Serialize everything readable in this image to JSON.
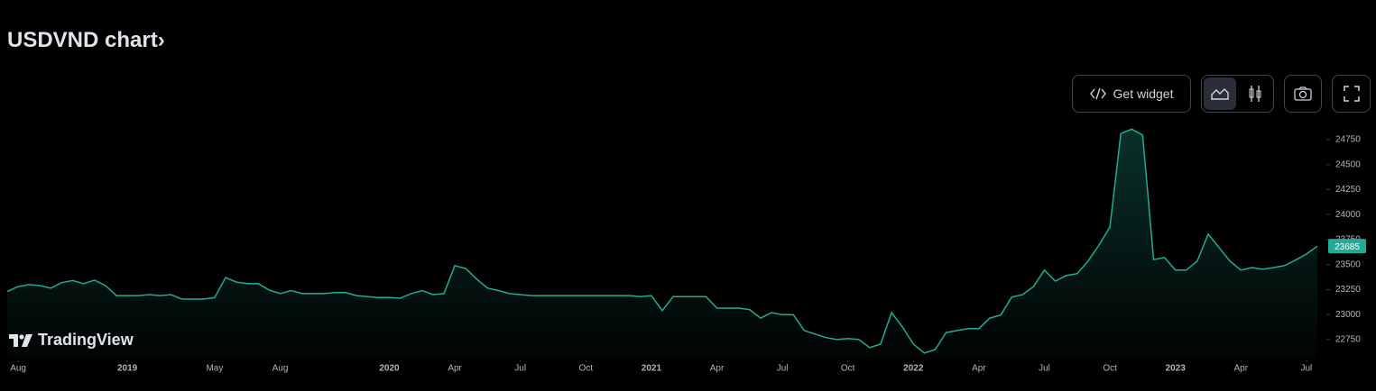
{
  "chart_data": {
    "type": "area",
    "title": "USDVND chart›",
    "color": "#22ab94",
    "values": [
      23230,
      23280,
      23300,
      23290,
      23265,
      23320,
      23340,
      23310,
      23345,
      23290,
      23190,
      23190,
      23190,
      23200,
      23190,
      23200,
      23155,
      23155,
      23155,
      23170,
      23370,
      23325,
      23310,
      23310,
      23245,
      23210,
      23240,
      23210,
      23210,
      23210,
      23220,
      23220,
      23190,
      23180,
      23170,
      23170,
      23165,
      23210,
      23240,
      23200,
      23210,
      23490,
      23460,
      23355,
      23265,
      23240,
      23210,
      23200,
      23190,
      23190,
      23190,
      23190,
      23190,
      23190,
      23190,
      23190,
      23190,
      23190,
      23180,
      23190,
      23040,
      23180,
      23180,
      23180,
      23180,
      23065,
      23065,
      23065,
      23050,
      22965,
      23020,
      23000,
      23000,
      22840,
      22805,
      22770,
      22750,
      22760,
      22750,
      22670,
      22705,
      23020,
      22875,
      22705,
      22615,
      22650,
      22820,
      22840,
      22860,
      22860,
      22965,
      22995,
      23175,
      23200,
      23280,
      23445,
      23335,
      23390,
      23410,
      23535,
      23695,
      23875,
      24810,
      24855,
      24795,
      23550,
      23570,
      23445,
      23445,
      23535,
      23805,
      23670,
      23535,
      23445,
      23470,
      23455,
      23470,
      23490,
      23545,
      23605,
      23685
    ],
    "last_price": 23685,
    "xlim": [
      0,
      120
    ],
    "xticks": [
      {
        "value": 1,
        "label": "Aug"
      },
      {
        "value": 11,
        "label": "2019"
      },
      {
        "value": 19,
        "label": "May"
      },
      {
        "value": 25,
        "label": "Aug"
      },
      {
        "value": 35,
        "label": "2020"
      },
      {
        "value": 41,
        "label": "Apr"
      },
      {
        "value": 47,
        "label": "Jul"
      },
      {
        "value": 53,
        "label": "Oct"
      },
      {
        "value": 59,
        "label": "2021"
      },
      {
        "value": 65,
        "label": "Apr"
      },
      {
        "value": 71,
        "label": "Jul"
      },
      {
        "value": 77,
        "label": "Oct"
      },
      {
        "value": 83,
        "label": "2022"
      },
      {
        "value": 89,
        "label": "Apr"
      },
      {
        "value": 95,
        "label": "Jul"
      },
      {
        "value": 101,
        "label": "Oct"
      },
      {
        "value": 107,
        "label": "2023"
      },
      {
        "value": 113,
        "label": "Apr"
      },
      {
        "value": 119,
        "label": "Jul"
      }
    ],
    "ylim": [
      22560,
      24930
    ],
    "yticks": [
      22750,
      23000,
      23250,
      23500,
      23750,
      24000,
      24250,
      24500,
      24750
    ]
  },
  "toolbar": {
    "get_widget": "Get widget"
  },
  "watermark": "TradingView"
}
